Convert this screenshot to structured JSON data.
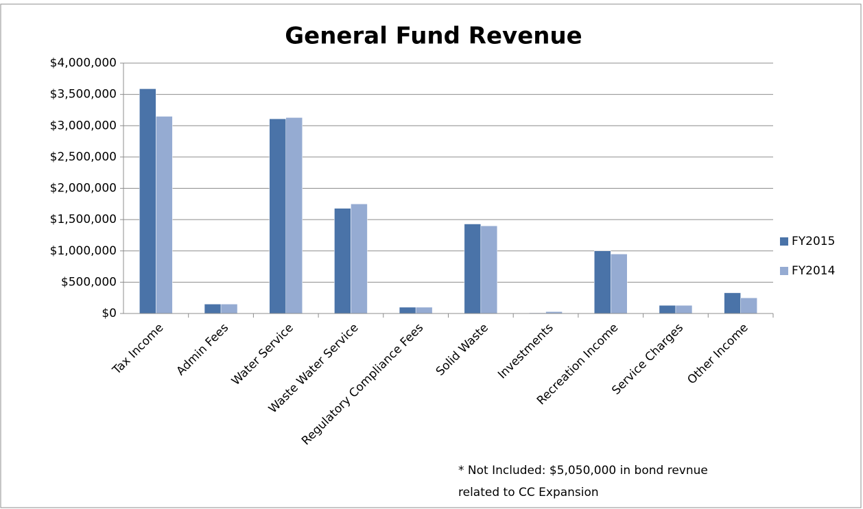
{
  "chart_data": {
    "type": "bar",
    "title": "General Fund Revenue",
    "categories": [
      "Tax Income",
      "Admin Fees",
      "Water Service",
      "Waste Water Service",
      "Regulatory Compliance Fees",
      "Solid Waste",
      "Investments",
      "Recreation Income",
      "Service Charges",
      "Other Income"
    ],
    "series": [
      {
        "name": "FY2015",
        "color": "#4a73a8",
        "values": [
          3590000,
          150000,
          3110000,
          1680000,
          100000,
          1430000,
          10000,
          1000000,
          130000,
          330000
        ]
      },
      {
        "name": "FY2014",
        "color": "#95abd2",
        "values": [
          3150000,
          150000,
          3130000,
          1750000,
          100000,
          1400000,
          30000,
          950000,
          130000,
          250000
        ]
      }
    ],
    "ylim": [
      0,
      4000000
    ],
    "yticks": [
      {
        "value": 0,
        "label": "$0"
      },
      {
        "value": 500000,
        "label": "$500,000"
      },
      {
        "value": 1000000,
        "label": "$1,000,000"
      },
      {
        "value": 1500000,
        "label": "$1,500,000"
      },
      {
        "value": 2000000,
        "label": "$2,000,000"
      },
      {
        "value": 2500000,
        "label": "$2,500,000"
      },
      {
        "value": 3000000,
        "label": "$3,000,000"
      },
      {
        "value": 3500000,
        "label": "$3,500,000"
      },
      {
        "value": 4000000,
        "label": "$4,000,000"
      }
    ],
    "grid": true,
    "legend": "right",
    "annotation": [
      "* Not Included: $5,050,000 in bond revnue",
      "related to CC Expansion"
    ]
  }
}
